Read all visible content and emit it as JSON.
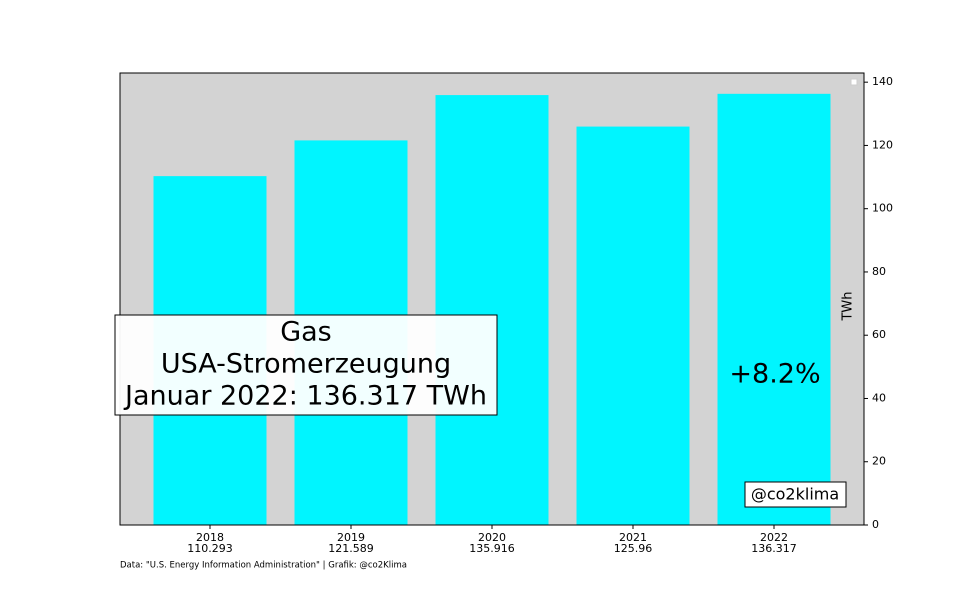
{
  "chart_data": {
    "type": "bar",
    "title": [
      "Gas",
      "USA-Stromerzeugung",
      "Januar 2022: 136.317 TWh"
    ],
    "categories": [
      "2018",
      "2019",
      "2020",
      "2021",
      "2022"
    ],
    "values": [
      110.293,
      121.589,
      135.916,
      125.96,
      136.317
    ],
    "color": "#00f5ff",
    "ylabel": "TWh",
    "ylim": [
      0,
      142.9
    ],
    "yticks": [
      0,
      20,
      40,
      60,
      80,
      100,
      120,
      140
    ],
    "y_axis_side": "right",
    "plot_background": "#d3d3d3",
    "annotations": [
      "+8.2%",
      "@co2klima"
    ],
    "source": "Data: \"U.S. Energy Information Administration\" | Grafik: @co2Klima"
  }
}
